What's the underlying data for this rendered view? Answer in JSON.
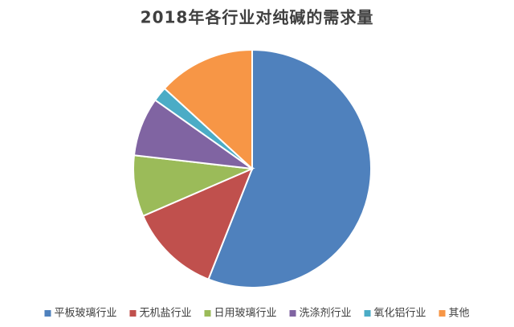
{
  "chart_data": {
    "type": "pie",
    "title": "2018年各行业对纯碱的需求量",
    "categories": [
      "平板玻璃行业",
      "无机盐行业",
      "日用玻璃行业",
      "洗涤剂行业",
      "氧化铝行业",
      "其他"
    ],
    "values": [
      56,
      12.5,
      8.3,
      8,
      2,
      13.2
    ],
    "colors": [
      "#4f81bd",
      "#c0504d",
      "#9bbb59",
      "#8064a2",
      "#4bacc6",
      "#f79646"
    ],
    "legend": "bottom"
  }
}
